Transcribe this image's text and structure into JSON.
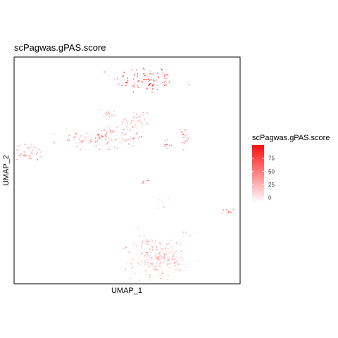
{
  "chart_data": {
    "type": "scatter",
    "title": "scPagwas.gPAS.score",
    "xlabel": "UMAP_1",
    "ylabel": "UMAP_2",
    "legend": {
      "title": "scPagwas.gPAS.score",
      "placement": "right",
      "ticks": [
        0,
        25,
        50,
        75
      ],
      "range": [
        -10,
        100
      ],
      "low_color": "#ffffff",
      "high_color": "#fb0f0f"
    },
    "grid": false,
    "xlim": [
      0,
      100
    ],
    "ylim": [
      0,
      100
    ],
    "clusters": [
      {
        "cx": 58,
        "cy": 90,
        "sx": 7,
        "sy": 3,
        "n": 90,
        "mean": 55,
        "sd": 25
      },
      {
        "cx": 40,
        "cy": 64,
        "sx": 9,
        "sy": 2.2,
        "n": 110,
        "mean": 35,
        "sd": 18
      },
      {
        "cx": 7,
        "cy": 58,
        "sx": 3.5,
        "sy": 1.8,
        "n": 45,
        "mean": 25,
        "sd": 14
      },
      {
        "cx": 42,
        "cy": 75,
        "sx": 1.5,
        "sy": 1.2,
        "n": 18,
        "mean": 15,
        "sd": 10
      },
      {
        "cx": 50,
        "cy": 70,
        "sx": 2,
        "sy": 2,
        "n": 26,
        "mean": 20,
        "sd": 12
      },
      {
        "cx": 55,
        "cy": 73,
        "sx": 1.8,
        "sy": 1.5,
        "n": 22,
        "mean": 25,
        "sd": 14
      },
      {
        "cx": 68,
        "cy": 61,
        "sx": 1.5,
        "sy": 1.2,
        "n": 15,
        "mean": 35,
        "sd": 15
      },
      {
        "cx": 75,
        "cy": 65,
        "sx": 1.6,
        "sy": 2.2,
        "n": 20,
        "mean": 35,
        "sd": 15
      },
      {
        "cx": 58,
        "cy": 45,
        "sx": 0.7,
        "sy": 0.7,
        "n": 6,
        "mean": 55,
        "sd": 25
      },
      {
        "cx": 66,
        "cy": 36,
        "sx": 1.5,
        "sy": 1.5,
        "n": 8,
        "mean": 15,
        "sd": 8
      },
      {
        "cx": 94,
        "cy": 32,
        "sx": 1,
        "sy": 0.6,
        "n": 8,
        "mean": 40,
        "sd": 15
      },
      {
        "cx": 77,
        "cy": 22,
        "sx": 1.5,
        "sy": 1,
        "n": 6,
        "mean": 15,
        "sd": 8
      },
      {
        "cx": 64,
        "cy": 11,
        "sx": 6,
        "sy": 4.5,
        "n": 230,
        "mean": 18,
        "sd": 12
      },
      {
        "cx": 59,
        "cy": 19,
        "sx": 0.5,
        "sy": 0.6,
        "n": 5,
        "mean": 30,
        "sd": 10
      },
      {
        "cx": 62,
        "cy": 19,
        "sx": 0.6,
        "sy": 0.6,
        "n": 6,
        "mean": 15,
        "sd": 8
      }
    ]
  }
}
